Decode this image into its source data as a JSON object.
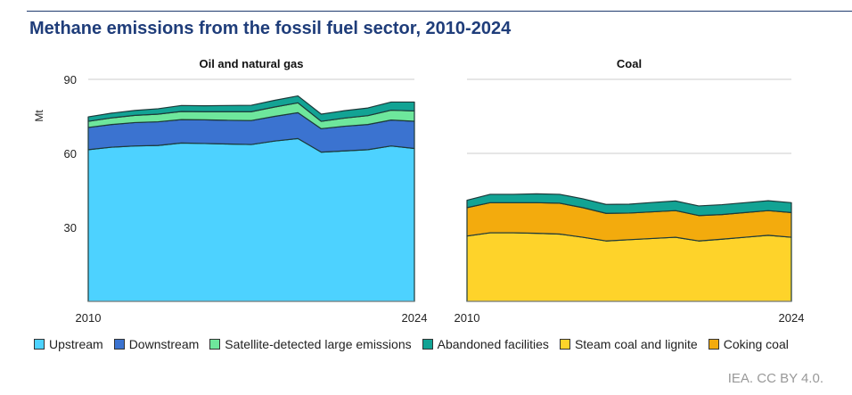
{
  "title": "Methane emissions from the fossil fuel sector, 2010-2024",
  "source": "IEA. CC BY 4.0.",
  "chart_data": [
    {
      "type": "area",
      "stacked": true,
      "title": "Oil and natural gas",
      "ylabel": "Mt",
      "ylim": [
        0,
        90
      ],
      "yticks": [
        30,
        60,
        90
      ],
      "x": [
        2010,
        2011,
        2012,
        2013,
        2014,
        2015,
        2016,
        2017,
        2018,
        2019,
        2020,
        2021,
        2022,
        2023,
        2024
      ],
      "xticklabels": [
        "2010",
        "2024"
      ],
      "series": [
        {
          "name": "Upstream",
          "color": "#4dd2ff",
          "values": [
            61.5,
            62.5,
            63,
            63.2,
            64.2,
            64,
            63.8,
            63.6,
            65,
            66,
            60.5,
            61,
            61.5,
            63,
            62
          ]
        },
        {
          "name": "Downstream",
          "color": "#3b73d0",
          "values": [
            9,
            9.2,
            9.5,
            9.6,
            9.5,
            9.6,
            9.6,
            9.7,
            10,
            10.5,
            9.5,
            10,
            10.2,
            10.5,
            11
          ]
        },
        {
          "name": "Satellite-detected large emissions",
          "color": "#6ee79c",
          "values": [
            2.5,
            2.7,
            2.9,
            3.1,
            3.3,
            3.3,
            3.5,
            3.6,
            3.8,
            4,
            3,
            3.3,
            3.6,
            4,
            4.2
          ]
        },
        {
          "name": "Abandoned facilities",
          "color": "#12a394",
          "values": [
            1.8,
            1.9,
            2,
            2.2,
            2.4,
            2.4,
            2.5,
            2.6,
            2.7,
            2.8,
            2.9,
            3,
            3.1,
            3.3,
            3.6
          ]
        }
      ]
    },
    {
      "type": "area",
      "stacked": true,
      "title": "Coal",
      "ylim": [
        0,
        90
      ],
      "x": [
        2010,
        2011,
        2012,
        2013,
        2014,
        2015,
        2016,
        2017,
        2018,
        2019,
        2020,
        2021,
        2022,
        2023,
        2024
      ],
      "xticklabels": [
        "2010",
        "2024"
      ],
      "series": [
        {
          "name": "Steam coal and lignite",
          "color": "#fed32a",
          "values": [
            26.5,
            27.8,
            27.8,
            27.6,
            27.3,
            26,
            24.5,
            25,
            25.5,
            26,
            24.5,
            25.2,
            26,
            26.8,
            26
          ]
        },
        {
          "name": "Coking coal",
          "color": "#f3ab0d",
          "values": [
            11.5,
            12.2,
            12.2,
            12.4,
            12.5,
            12,
            11.2,
            10.8,
            10.8,
            10.8,
            10.3,
            10,
            10,
            10,
            10
          ]
        },
        {
          "name": "Abandoned facilities",
          "color": "#12a394",
          "values": [
            3,
            3.4,
            3.4,
            3.6,
            3.6,
            3.6,
            3.6,
            3.6,
            3.8,
            3.9,
            3.9,
            4,
            4,
            4,
            4
          ]
        }
      ]
    }
  ],
  "legend": [
    "Upstream",
    "Downstream",
    "Satellite-detected large emissions",
    "Abandoned facilities",
    "Steam coal and lignite",
    "Coking coal"
  ],
  "legend_colors": [
    "#4dd2ff",
    "#3b73d0",
    "#6ee79c",
    "#12a394",
    "#fed32a",
    "#f3ab0d"
  ]
}
